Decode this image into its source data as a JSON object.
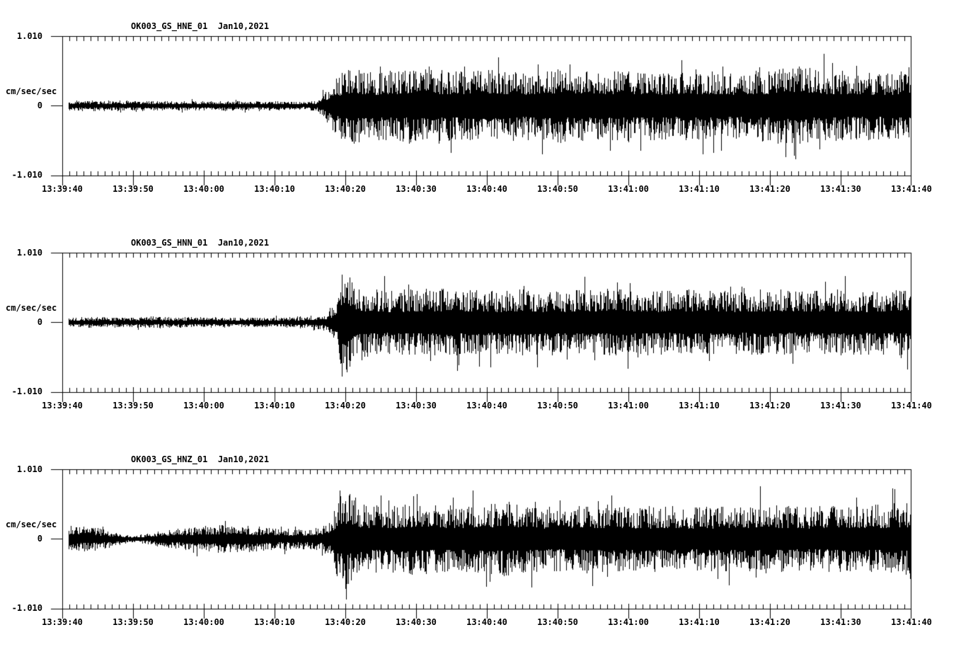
{
  "page": {
    "bg": "#ffffff",
    "fg": "#000000"
  },
  "axis": {
    "y_labels": {
      "top": "1.010",
      "zero": "0",
      "bottom": "-1.010",
      "unit": "cm/sec/sec"
    },
    "x_tick_labels": [
      "13:39:40",
      "13:39:50",
      "13:40:00",
      "13:40:10",
      "13:40:20",
      "13:40:30",
      "13:40:40",
      "13:40:50",
      "13:41:00",
      "13:41:10",
      "13:41:20",
      "13:41:30",
      "13:41:40"
    ],
    "x_span_sec": 120,
    "x_major_interval_sec": 10,
    "x_minor_interval_sec": 1
  },
  "chart_data": [
    {
      "type": "line",
      "kind": "seismogram",
      "title": "OK003_GS_HNE_01  Jan10,2021",
      "channel_id": "OK003_GS_HNE_01",
      "date": "Jan10,2021",
      "ylabel": "cm/sec/sec",
      "ylim": [
        -1.01,
        1.01
      ],
      "y_tick_labels": [
        "1.010",
        "0",
        "-1.010"
      ],
      "x_range": [
        "13:39:40",
        "13:41:40"
      ],
      "grid": false,
      "seed": 11,
      "envelope_note": "pairs of [seconds after 13:39:40, peak amplitude cm/sec/sec]",
      "envelope": [
        [
          0,
          0.05
        ],
        [
          20,
          0.046
        ],
        [
          30,
          0.042
        ],
        [
          34,
          0.038
        ],
        [
          36,
          0.05
        ],
        [
          37.5,
          0.17
        ],
        [
          39,
          0.3
        ],
        [
          41,
          0.37
        ],
        [
          44,
          0.32
        ],
        [
          50,
          0.35
        ],
        [
          55,
          0.33
        ],
        [
          60,
          0.35
        ],
        [
          65,
          0.32
        ],
        [
          70,
          0.35
        ],
        [
          75,
          0.33
        ],
        [
          80,
          0.34
        ],
        [
          85,
          0.32
        ],
        [
          90,
          0.34
        ],
        [
          95,
          0.32
        ],
        [
          100,
          0.34
        ],
        [
          104,
          0.4
        ],
        [
          106,
          0.34
        ],
        [
          110,
          0.33
        ],
        [
          115,
          0.31
        ],
        [
          120,
          0.33
        ]
      ],
      "spikes_note": "triples of [seconds, up amplitude, down amplitude]",
      "spikes": [
        [
          41.0,
          0.35,
          0.52
        ],
        [
          50.6,
          0.48,
          0.38
        ],
        [
          53.2,
          0.36,
          0.55
        ],
        [
          71.7,
          0.6,
          0.4
        ],
        [
          87.5,
          0.52,
          0.36
        ],
        [
          105.6,
          0.55,
          0.4
        ],
        [
          113.9,
          0.38,
          0.5
        ]
      ]
    },
    {
      "type": "line",
      "kind": "seismogram",
      "title": "OK003_GS_HNN_01  Jan10,2021",
      "channel_id": "OK003_GS_HNN_01",
      "date": "Jan10,2021",
      "ylabel": "cm/sec/sec",
      "ylim": [
        -1.01,
        1.01
      ],
      "y_tick_labels": [
        "1.010",
        "0",
        "-1.010"
      ],
      "x_range": [
        "13:39:40",
        "13:41:40"
      ],
      "grid": false,
      "seed": 22,
      "envelope_note": "pairs of [seconds after 13:39:40, peak amplitude cm/sec/sec]",
      "envelope": [
        [
          0,
          0.055
        ],
        [
          8,
          0.05
        ],
        [
          14,
          0.055
        ],
        [
          20,
          0.048
        ],
        [
          27,
          0.044
        ],
        [
          32,
          0.05
        ],
        [
          35,
          0.062
        ],
        [
          37.5,
          0.09
        ],
        [
          38.8,
          0.2
        ],
        [
          39.4,
          0.46
        ],
        [
          40.6,
          0.44
        ],
        [
          42,
          0.33
        ],
        [
          45,
          0.3
        ],
        [
          50,
          0.31
        ],
        [
          55,
          0.32
        ],
        [
          60,
          0.3
        ],
        [
          65,
          0.31
        ],
        [
          70,
          0.3
        ],
        [
          75,
          0.31
        ],
        [
          80,
          0.32
        ],
        [
          85,
          0.3
        ],
        [
          90,
          0.31
        ],
        [
          95,
          0.3
        ],
        [
          100,
          0.31
        ],
        [
          105,
          0.3
        ],
        [
          110,
          0.31
        ],
        [
          115,
          0.3
        ],
        [
          120,
          0.31
        ]
      ],
      "spikes_note": "triples of [seconds, up amplitude, down amplitude]",
      "spikes": [
        [
          39.5,
          0.62,
          0.78
        ],
        [
          40.2,
          0.5,
          0.72
        ],
        [
          40.9,
          0.58,
          0.45
        ],
        [
          48.9,
          0.55,
          0.4
        ],
        [
          56.0,
          0.35,
          0.62
        ],
        [
          80.2,
          0.57,
          0.4
        ],
        [
          96.3,
          0.5,
          0.42
        ],
        [
          118.5,
          0.45,
          0.52
        ]
      ]
    },
    {
      "type": "line",
      "kind": "seismogram",
      "title": "OK003_GS_HNZ_01  Jan10,2021",
      "channel_id": "OK003_GS_HNZ_01",
      "date": "Jan10,2021",
      "ylabel": "cm/sec/sec",
      "ylim": [
        -1.01,
        1.01
      ],
      "y_tick_labels": [
        "1.010",
        "0",
        "-1.010"
      ],
      "x_range": [
        "13:39:40",
        "13:41:40"
      ],
      "grid": false,
      "seed": 33,
      "envelope_note": "pairs of [seconds after 13:39:40, peak amplitude cm/sec/sec]",
      "envelope": [
        [
          0,
          0.13
        ],
        [
          5,
          0.105
        ],
        [
          10,
          0.028
        ],
        [
          15,
          0.085
        ],
        [
          20,
          0.125
        ],
        [
          24,
          0.135
        ],
        [
          28,
          0.115
        ],
        [
          31,
          0.098
        ],
        [
          34,
          0.095
        ],
        [
          36.5,
          0.105
        ],
        [
          38,
          0.18
        ],
        [
          39,
          0.4
        ],
        [
          40.5,
          0.43
        ],
        [
          42,
          0.34
        ],
        [
          45,
          0.31
        ],
        [
          50,
          0.34
        ],
        [
          55,
          0.3
        ],
        [
          60,
          0.33
        ],
        [
          63,
          0.35
        ],
        [
          67,
          0.31
        ],
        [
          70,
          0.3
        ],
        [
          75,
          0.32
        ],
        [
          80,
          0.3
        ],
        [
          85,
          0.31
        ],
        [
          90,
          0.3
        ],
        [
          95,
          0.31
        ],
        [
          100,
          0.32
        ],
        [
          105,
          0.3
        ],
        [
          110,
          0.31
        ],
        [
          115,
          0.32
        ],
        [
          120,
          0.34
        ]
      ],
      "spikes_note": "triples of [seconds, up amplitude, down amplitude]",
      "spikes": [
        [
          39.2,
          0.7,
          0.48
        ],
        [
          40.0,
          0.55,
          0.72
        ],
        [
          55.2,
          0.6,
          0.4
        ],
        [
          60.4,
          0.4,
          0.62
        ],
        [
          77.0,
          0.5,
          0.55
        ],
        [
          98.6,
          0.76,
          0.45
        ],
        [
          117.5,
          0.52,
          0.4
        ]
      ]
    }
  ]
}
